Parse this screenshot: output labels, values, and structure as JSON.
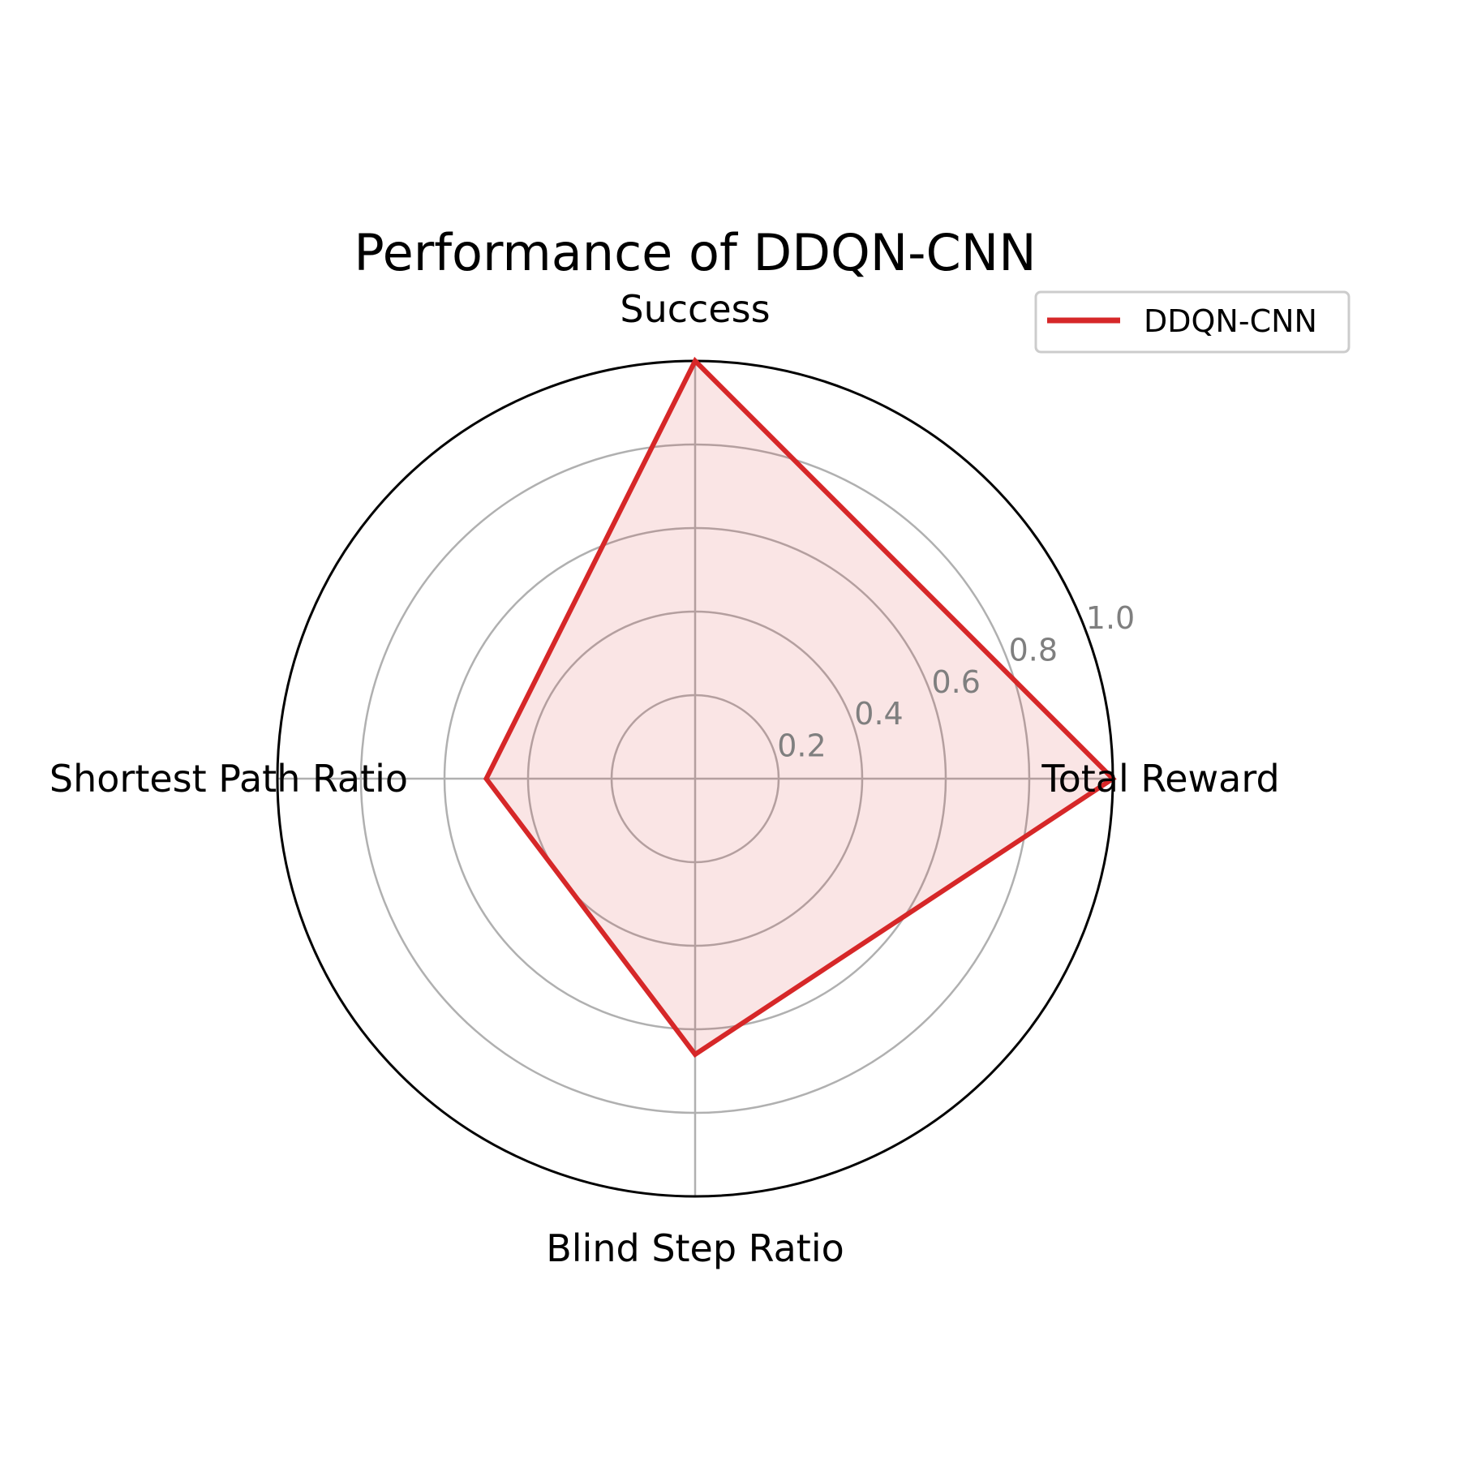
{
  "chart_data": {
    "type": "radar",
    "title": "Performance of DDQN-CNN",
    "axes": [
      "Total Reward",
      "Success",
      "Shortest Path Ratio",
      "Blind Step Ratio"
    ],
    "series": [
      {
        "name": "DDQN-CNN",
        "values": [
          1.0,
          1.0,
          0.5,
          0.66
        ],
        "color": "#d62728",
        "fill_color": "#d62728"
      }
    ],
    "radial_ticks": [
      0.2,
      0.4,
      0.6,
      0.8,
      1.0
    ],
    "radial_tick_labels": [
      "0.2",
      "0.4",
      "0.6",
      "0.8",
      "1.0"
    ],
    "rlim": [
      0,
      1.0
    ],
    "grid": true,
    "legend_position": "top-right"
  },
  "colors": {
    "grid": "#b0b0b0",
    "frame": "#000000",
    "tick_text": "#7f7f7f"
  }
}
